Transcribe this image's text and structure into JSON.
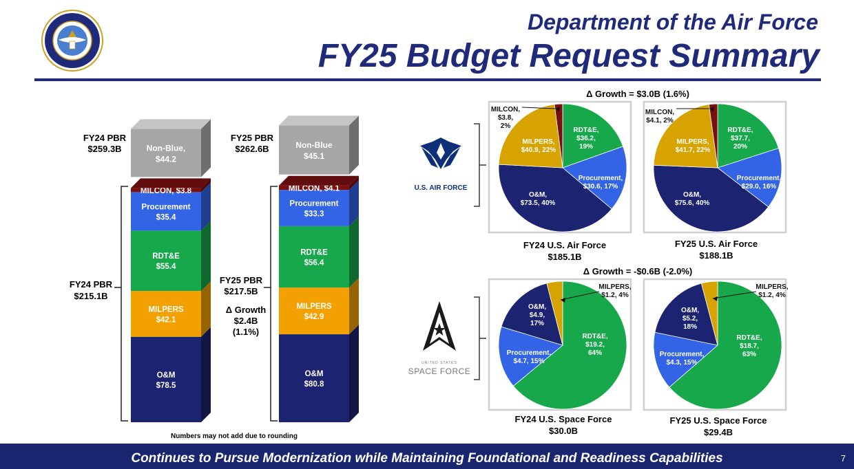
{
  "header": {
    "title_line1": "Department of the Air Force",
    "title_line2": "FY25 Budget Request Summary"
  },
  "footer": {
    "text": "Continues to Pursue Modernization while Maintaining Foundational and Readiness Capabilities",
    "page_number": "7"
  },
  "note": "Numbers may not add due to rounding",
  "logos": {
    "seal": "department-of-the-air-force-seal",
    "usaf_text": "U.S. AIR FORCE",
    "ussf_text_small": "UNITED STATES",
    "ussf_text": "SPACE FORCE"
  },
  "colors": {
    "navy": "#1c2370",
    "gold": "#f2a100",
    "green": "#16a84a",
    "blue": "#3464e6",
    "maroon": "#7a1010",
    "gray": "#a6a6a6",
    "title_blue": "#1f2a7a"
  },
  "chart_data": [
    {
      "type": "bar",
      "subtype": "stacked-3d",
      "categories": [
        "FY24 PBR",
        "FY25 PBR"
      ],
      "series": [
        {
          "name": "O&M",
          "label": [
            "O&M",
            "O&M"
          ],
          "value_label": [
            "$78.5",
            "$80.8"
          ],
          "values": [
            78.5,
            80.8
          ],
          "color": "#1c2370"
        },
        {
          "name": "MILPERS",
          "label": [
            "MILPERS",
            "MILPERS"
          ],
          "value_label": [
            "$42.1",
            "$42.9"
          ],
          "values": [
            42.1,
            42.9
          ],
          "color": "#f2a100"
        },
        {
          "name": "RDT&E",
          "label": [
            "RDT&E",
            "RDT&E"
          ],
          "value_label": [
            "$55.4",
            "$56.4"
          ],
          "values": [
            55.4,
            56.4
          ],
          "color": "#16a84a"
        },
        {
          "name": "Procurement",
          "label": [
            "Procurement",
            "Procurement"
          ],
          "value_label": [
            "$35.4",
            "$33.3"
          ],
          "values": [
            35.4,
            33.3
          ],
          "color": "#3464e6"
        },
        {
          "name": "MILCON",
          "label": [
            "MILCON, $3.8",
            "MILCON, $4.1"
          ],
          "values": [
            3.8,
            4.1
          ],
          "color": "#7a1010"
        }
      ],
      "non_blue": {
        "label": [
          "Non-Blue,",
          "Non-Blue"
        ],
        "value_label": [
          "$44.2",
          "$45.1"
        ],
        "values": [
          44.2,
          45.1
        ],
        "color": "#a6a6a6"
      },
      "totals": [
        {
          "name": "FY24 PBR",
          "value": "$259.3B"
        },
        {
          "name": "FY25 PBR",
          "value": "$262.6B"
        }
      ],
      "blue_totals": [
        {
          "name": "FY24 PBR",
          "value": "$215.1B"
        },
        {
          "name": "FY25 PBR",
          "value": "$217.5B"
        }
      ],
      "growth": {
        "label": "Δ Growth",
        "value": "$2.4B",
        "pct": "(1.1%)"
      }
    },
    {
      "type": "pie",
      "title": "FY24 U.S. Air Force",
      "total": "$185.1B",
      "growth_header": "Δ Growth = $3.0B (1.6%)",
      "slices": [
        {
          "name": "RDT&E",
          "label": [
            "RDT&E,",
            "$36.2,",
            "19%"
          ],
          "value": 36.2,
          "pct": 19,
          "color": "#16a84a"
        },
        {
          "name": "Procurement",
          "label": [
            "Procurement,",
            "$30.6, 17%"
          ],
          "value": 30.6,
          "pct": 17,
          "color": "#3464e6"
        },
        {
          "name": "O&M",
          "label": [
            "O&M,",
            "$73.5, 40%"
          ],
          "value": 73.5,
          "pct": 40,
          "color": "#1c2370"
        },
        {
          "name": "MILPERS",
          "label": [
            "MILPERS,",
            "$40.9, 22%"
          ],
          "value": 40.9,
          "pct": 22,
          "color": "#d6a300"
        },
        {
          "name": "MILCON",
          "label": [
            "MILCON,",
            "$3.8,",
            "2%"
          ],
          "value": 3.8,
          "pct": 2,
          "color": "#7a1010"
        }
      ]
    },
    {
      "type": "pie",
      "title": "FY25 U.S. Air Force",
      "total": "$188.1B",
      "slices": [
        {
          "name": "RDT&E",
          "label": [
            "RDT&E,",
            "$37.7,",
            "20%"
          ],
          "value": 37.7,
          "pct": 20,
          "color": "#16a84a"
        },
        {
          "name": "Procurement",
          "label": [
            "Procurement,",
            "$29.0, 16%"
          ],
          "value": 29.0,
          "pct": 16,
          "color": "#3464e6"
        },
        {
          "name": "O&M",
          "label": [
            "O&M,",
            "$75.6, 40%"
          ],
          "value": 75.6,
          "pct": 40,
          "color": "#1c2370"
        },
        {
          "name": "MILPERS",
          "label": [
            "MILPERS,",
            "$41.7, 22%"
          ],
          "value": 41.7,
          "pct": 22,
          "color": "#d6a300"
        },
        {
          "name": "MILCON",
          "label": [
            "MILCON,",
            "$4.1, 2%"
          ],
          "value": 4.1,
          "pct": 2,
          "color": "#7a1010"
        }
      ]
    },
    {
      "type": "pie",
      "title": "FY24 U.S. Space Force",
      "total": "$30.0B",
      "growth_header": "Δ Growth = -$0.6B (-2.0%)",
      "slices": [
        {
          "name": "RDT&E",
          "label": [
            "RDT&E,",
            "$19.2,",
            "64%"
          ],
          "value": 19.2,
          "pct": 64,
          "color": "#16a84a"
        },
        {
          "name": "Procurement",
          "label": [
            "Procurement,",
            "$4.7, 15%"
          ],
          "value": 4.7,
          "pct": 15,
          "color": "#3464e6"
        },
        {
          "name": "O&M",
          "label": [
            "O&M,",
            "$4.9,",
            "17%"
          ],
          "value": 4.9,
          "pct": 17,
          "color": "#1c2370"
        },
        {
          "name": "MILPERS",
          "label": [
            "MILPERS,",
            "$1.2, 4%"
          ],
          "value": 1.2,
          "pct": 4,
          "color": "#d6a300"
        }
      ]
    },
    {
      "type": "pie",
      "title": "FY25 U.S. Space Force",
      "total": "$29.4B",
      "slices": [
        {
          "name": "RDT&E",
          "label": [
            "RDT&E,",
            "$18.7,",
            "63%"
          ],
          "value": 18.7,
          "pct": 63,
          "color": "#16a84a"
        },
        {
          "name": "Procurement",
          "label": [
            "Procurement,",
            "$4.3, 15%"
          ],
          "value": 4.3,
          "pct": 15,
          "color": "#3464e6"
        },
        {
          "name": "O&M",
          "label": [
            "O&M,",
            "$5.2,",
            "18%"
          ],
          "value": 5.2,
          "pct": 18,
          "color": "#1c2370"
        },
        {
          "name": "MILPERS",
          "label": [
            "MILPERS,",
            "$1.2, 4%"
          ],
          "value": 1.2,
          "pct": 4,
          "color": "#d6a300"
        }
      ]
    }
  ]
}
